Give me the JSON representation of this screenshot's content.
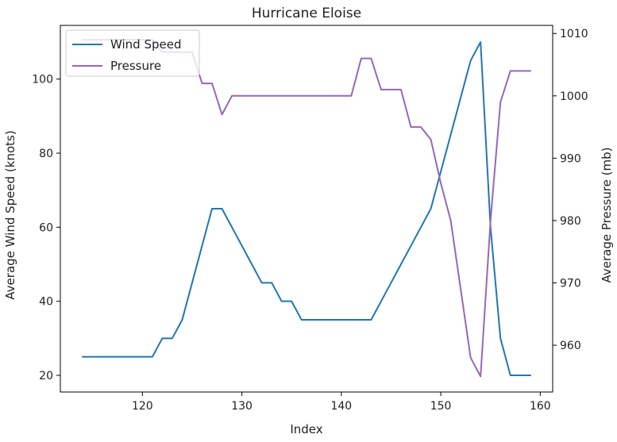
{
  "chart_data": {
    "type": "line",
    "title": "Hurricane Eloise",
    "xlabel": "Index",
    "ylabel_left": "Average Wind Speed (knots)",
    "ylabel_right": "Average Pressure (mb)",
    "xlim": [
      111.75,
      161.25
    ],
    "ylim_left": [
      15.5,
      114.5
    ],
    "ylim_right": [
      952.5,
      1011.3
    ],
    "xticks": [
      120,
      130,
      140,
      150,
      160
    ],
    "yticks_left": [
      20,
      40,
      60,
      80,
      100
    ],
    "yticks_right": [
      960,
      970,
      980,
      990,
      1000,
      1010
    ],
    "legend_position": "top-left",
    "grid": false,
    "series": [
      {
        "name": "Wind Speed",
        "axis": "left",
        "color": "#1f77b4",
        "x": [
          114,
          115,
          116,
          117,
          118,
          119,
          120,
          121,
          122,
          123,
          124,
          125,
          126,
          127,
          128,
          129,
          130,
          131,
          132,
          133,
          134,
          135,
          136,
          137,
          138,
          139,
          140,
          141,
          142,
          143,
          144,
          145,
          146,
          147,
          148,
          149,
          150,
          151,
          152,
          153,
          154,
          155,
          156,
          157,
          158,
          159
        ],
        "y": [
          25,
          25,
          25,
          25,
          25,
          25,
          25,
          25,
          30,
          30,
          35,
          45,
          55,
          65,
          65,
          60,
          55,
          50,
          45,
          45,
          40,
          40,
          35,
          35,
          35,
          35,
          35,
          35,
          35,
          35,
          40,
          45,
          50,
          55,
          60,
          65,
          75,
          85,
          95,
          105,
          110,
          60,
          30,
          20,
          20,
          20
        ]
      },
      {
        "name": "Pressure",
        "axis": "right",
        "color": "#9467bd",
        "x": [
          114,
          115,
          116,
          117,
          118,
          119,
          120,
          121,
          122,
          123,
          124,
          125,
          126,
          127,
          128,
          129,
          130,
          131,
          132,
          133,
          134,
          135,
          136,
          137,
          138,
          139,
          140,
          141,
          142,
          143,
          144,
          145,
          146,
          147,
          148,
          149,
          150,
          151,
          152,
          153,
          154,
          155,
          156,
          157,
          158,
          159
        ],
        "y": [
          1009,
          1009,
          1009,
          1009,
          1009,
          1009,
          1009,
          1009,
          1007,
          1007,
          1007,
          1007,
          1002,
          1002,
          997,
          1000,
          1000,
          1000,
          1000,
          1000,
          1000,
          1000,
          1000,
          1000,
          1000,
          1000,
          1000,
          1000,
          1006,
          1006,
          1001,
          1001,
          1001,
          995,
          995,
          993,
          986,
          980,
          969,
          958,
          955,
          980,
          999,
          1004,
          1004,
          1004
        ]
      }
    ]
  }
}
